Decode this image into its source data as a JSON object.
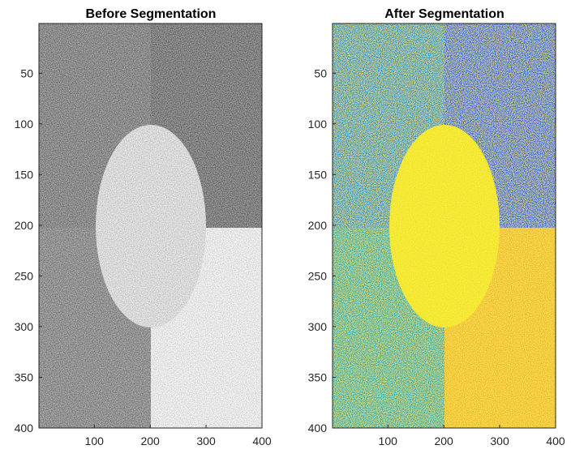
{
  "chart_data": [
    {
      "type": "heatmap",
      "title": "Before Segmentation",
      "colormap": "gray",
      "xlim": [
        1,
        400
      ],
      "ylim": [
        1,
        400
      ],
      "y_reversed": true,
      "xticks": [
        100,
        200,
        300,
        400
      ],
      "yticks": [
        50,
        100,
        150,
        200,
        250,
        300,
        350,
        400
      ],
      "regions": [
        {
          "name": "top-left",
          "x": [
            0,
            200
          ],
          "y": [
            0,
            200
          ],
          "mean_intensity": 0.42
        },
        {
          "name": "top-right",
          "x": [
            200,
            400
          ],
          "y": [
            0,
            200
          ],
          "mean_intensity": 0.38
        },
        {
          "name": "bottom-left",
          "x": [
            0,
            200
          ],
          "y": [
            200,
            400
          ],
          "mean_intensity": 0.48
        },
        {
          "name": "bottom-right",
          "x": [
            200,
            400
          ],
          "y": [
            200,
            400
          ],
          "mean_intensity": 0.97
        },
        {
          "name": "ellipse",
          "center": [
            200,
            203
          ],
          "radii": [
            100,
            100
          ],
          "mean_intensity": 0.88
        }
      ]
    },
    {
      "type": "heatmap",
      "title": "After Segmentation",
      "colormap": "parula",
      "xlim": [
        1,
        400
      ],
      "ylim": [
        1,
        400
      ],
      "y_reversed": true,
      "xticks": [
        100,
        200,
        300,
        400
      ],
      "yticks": [
        50,
        100,
        150,
        200,
        250,
        300,
        350,
        400
      ],
      "regions": [
        {
          "name": "top-left",
          "x": [
            0,
            200
          ],
          "y": [
            0,
            200
          ],
          "mean_color": "#1f8fc0"
        },
        {
          "name": "top-right",
          "x": [
            200,
            400
          ],
          "y": [
            0,
            200
          ],
          "mean_color": "#1b5fd6"
        },
        {
          "name": "bottom-left",
          "x": [
            0,
            200
          ],
          "y": [
            200,
            400
          ],
          "mean_color": "#2aa8a8"
        },
        {
          "name": "bottom-right",
          "x": [
            200,
            400
          ],
          "y": [
            200,
            400
          ],
          "mean_color": "#f0b830"
        },
        {
          "name": "ellipse",
          "center": [
            200,
            203
          ],
          "radii": [
            100,
            100
          ],
          "mean_color": "#f2e31a"
        }
      ]
    }
  ]
}
